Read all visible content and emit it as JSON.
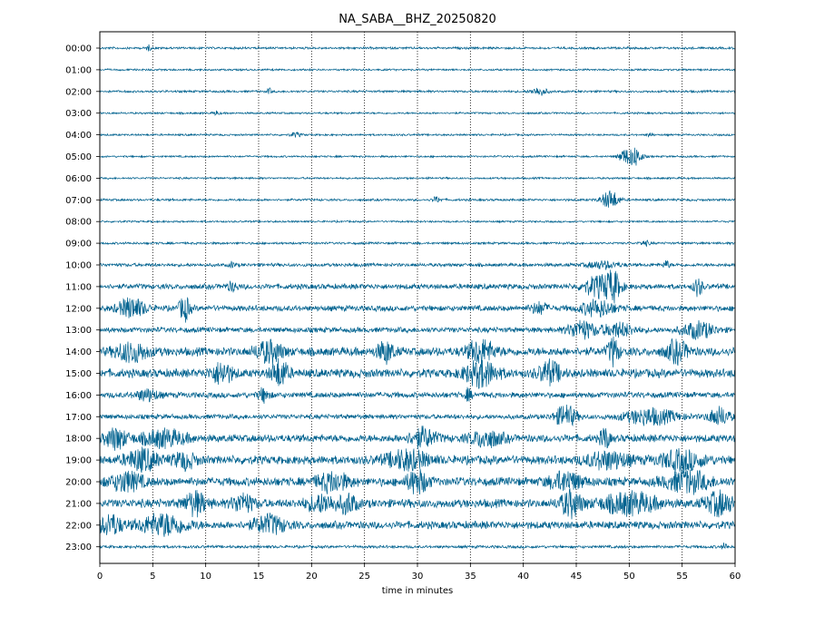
{
  "chart_data": {
    "type": "line",
    "title": "NA_SABA__BHZ_20250820",
    "xlabel": "time in minutes",
    "ylabel": "",
    "xlim": [
      0,
      60
    ],
    "x_ticks": [
      0,
      5,
      10,
      15,
      20,
      25,
      30,
      35,
      40,
      45,
      50,
      55,
      60
    ],
    "grid": "vertical dotted",
    "trace_color": "#00628f",
    "grid_color": "#000000",
    "rows": [
      {
        "label": "00:00",
        "noise": 0.12,
        "events": [
          {
            "t": 4.6,
            "amp": 0.25,
            "dur": 0.4
          }
        ]
      },
      {
        "label": "01:00",
        "noise": 0.1,
        "events": []
      },
      {
        "label": "02:00",
        "noise": 0.12,
        "events": [
          {
            "t": 16.0,
            "amp": 0.25,
            "dur": 0.4
          },
          {
            "t": 41.5,
            "amp": 0.35,
            "dur": 1.5
          }
        ]
      },
      {
        "label": "03:00",
        "noise": 0.1,
        "events": [
          {
            "t": 11.0,
            "amp": 0.2,
            "dur": 0.5
          }
        ]
      },
      {
        "label": "04:00",
        "noise": 0.1,
        "events": [
          {
            "t": 18.5,
            "amp": 0.2,
            "dur": 1.0
          },
          {
            "t": 52.0,
            "amp": 0.2,
            "dur": 0.5
          }
        ]
      },
      {
        "label": "05:00",
        "noise": 0.1,
        "events": [
          {
            "t": 49.5,
            "amp": 0.55,
            "dur": 1.0
          },
          {
            "t": 50.5,
            "amp": 0.9,
            "dur": 1.3
          }
        ]
      },
      {
        "label": "06:00",
        "noise": 0.1,
        "events": []
      },
      {
        "label": "07:00",
        "noise": 0.12,
        "events": [
          {
            "t": 31.8,
            "amp": 0.25,
            "dur": 0.8
          },
          {
            "t": 48.2,
            "amp": 0.85,
            "dur": 1.6
          }
        ]
      },
      {
        "label": "08:00",
        "noise": 0.1,
        "events": []
      },
      {
        "label": "09:00",
        "noise": 0.12,
        "events": [
          {
            "t": 51.5,
            "amp": 0.2,
            "dur": 1.0
          }
        ]
      },
      {
        "label": "10:00",
        "noise": 0.18,
        "events": [
          {
            "t": 12.5,
            "amp": 0.25,
            "dur": 0.5
          },
          {
            "t": 47.5,
            "amp": 0.3,
            "dur": 3.0
          },
          {
            "t": 53.5,
            "amp": 0.35,
            "dur": 0.6
          }
        ]
      },
      {
        "label": "11:00",
        "noise": 0.28,
        "events": [
          {
            "t": 12.5,
            "amp": 0.35,
            "dur": 1.0
          },
          {
            "t": 47.0,
            "amp": 0.9,
            "dur": 2.5
          },
          {
            "t": 48.5,
            "amp": 1.2,
            "dur": 1.5
          },
          {
            "t": 56.5,
            "amp": 0.8,
            "dur": 0.8
          }
        ]
      },
      {
        "label": "12:00",
        "noise": 0.3,
        "events": [
          {
            "t": 3.0,
            "amp": 0.9,
            "dur": 2.5
          },
          {
            "t": 8.0,
            "amp": 1.1,
            "dur": 1.0
          },
          {
            "t": 41.5,
            "amp": 0.5,
            "dur": 1.5
          },
          {
            "t": 47.0,
            "amp": 0.7,
            "dur": 3.0
          }
        ]
      },
      {
        "label": "13:00",
        "noise": 0.28,
        "events": [
          {
            "t": 45.5,
            "amp": 0.8,
            "dur": 2.5
          },
          {
            "t": 49.0,
            "amp": 0.6,
            "dur": 3.0
          },
          {
            "t": 56.5,
            "amp": 0.7,
            "dur": 3.0
          }
        ]
      },
      {
        "label": "14:00",
        "noise": 0.45,
        "events": [
          {
            "t": 3.0,
            "amp": 0.8,
            "dur": 3.0
          },
          {
            "t": 16.0,
            "amp": 0.9,
            "dur": 2.5
          },
          {
            "t": 27.0,
            "amp": 0.9,
            "dur": 1.5
          },
          {
            "t": 36.0,
            "amp": 1.0,
            "dur": 2.5
          },
          {
            "t": 48.5,
            "amp": 1.2,
            "dur": 1.0
          },
          {
            "t": 54.5,
            "amp": 0.9,
            "dur": 2.0
          }
        ]
      },
      {
        "label": "15:00",
        "noise": 0.45,
        "events": [
          {
            "t": 11.5,
            "amp": 0.9,
            "dur": 2.0
          },
          {
            "t": 17.0,
            "amp": 1.2,
            "dur": 1.5
          },
          {
            "t": 36.0,
            "amp": 1.1,
            "dur": 3.0
          },
          {
            "t": 42.5,
            "amp": 1.0,
            "dur": 2.0
          }
        ]
      },
      {
        "label": "16:00",
        "noise": 0.3,
        "events": [
          {
            "t": 4.5,
            "amp": 0.5,
            "dur": 2.0
          },
          {
            "t": 15.5,
            "amp": 0.6,
            "dur": 1.0
          },
          {
            "t": 34.8,
            "amp": 0.5,
            "dur": 0.6
          }
        ]
      },
      {
        "label": "17:00",
        "noise": 0.25,
        "events": [
          {
            "t": 44.0,
            "amp": 1.0,
            "dur": 2.0
          },
          {
            "t": 52.0,
            "amp": 0.7,
            "dur": 5.0
          },
          {
            "t": 58.5,
            "amp": 0.8,
            "dur": 2.0
          }
        ]
      },
      {
        "label": "18:00",
        "noise": 0.4,
        "events": [
          {
            "t": 1.5,
            "amp": 0.9,
            "dur": 2.0
          },
          {
            "t": 6.0,
            "amp": 0.7,
            "dur": 4.0
          },
          {
            "t": 30.5,
            "amp": 0.8,
            "dur": 2.5
          },
          {
            "t": 36.5,
            "amp": 0.7,
            "dur": 3.0
          },
          {
            "t": 47.7,
            "amp": 1.0,
            "dur": 0.8
          }
        ]
      },
      {
        "label": "19:00",
        "noise": 0.45,
        "events": [
          {
            "t": 4.0,
            "amp": 0.9,
            "dur": 3.0
          },
          {
            "t": 8.0,
            "amp": 0.7,
            "dur": 2.0
          },
          {
            "t": 29.0,
            "amp": 0.8,
            "dur": 4.0
          },
          {
            "t": 48.0,
            "amp": 0.7,
            "dur": 4.0
          },
          {
            "t": 55.0,
            "amp": 0.8,
            "dur": 4.0
          }
        ]
      },
      {
        "label": "20:00",
        "noise": 0.45,
        "events": [
          {
            "t": 2.5,
            "amp": 0.8,
            "dur": 3.0
          },
          {
            "t": 22.0,
            "amp": 0.8,
            "dur": 3.0
          },
          {
            "t": 30.0,
            "amp": 1.0,
            "dur": 2.0
          },
          {
            "t": 44.0,
            "amp": 0.8,
            "dur": 3.0
          },
          {
            "t": 55.5,
            "amp": 0.9,
            "dur": 4.0
          }
        ]
      },
      {
        "label": "21:00",
        "noise": 0.45,
        "events": [
          {
            "t": 9.0,
            "amp": 1.0,
            "dur": 2.0
          },
          {
            "t": 13.5,
            "amp": 0.8,
            "dur": 2.0
          },
          {
            "t": 21.0,
            "amp": 0.7,
            "dur": 3.0
          },
          {
            "t": 23.5,
            "amp": 0.8,
            "dur": 1.5
          },
          {
            "t": 44.5,
            "amp": 1.1,
            "dur": 2.0
          },
          {
            "t": 50.0,
            "amp": 0.9,
            "dur": 5.0
          },
          {
            "t": 58.5,
            "amp": 1.0,
            "dur": 2.5
          }
        ]
      },
      {
        "label": "22:00",
        "noise": 0.4,
        "events": [
          {
            "t": 1.0,
            "amp": 0.9,
            "dur": 2.0
          },
          {
            "t": 6.0,
            "amp": 0.9,
            "dur": 4.5
          },
          {
            "t": 16.0,
            "amp": 0.8,
            "dur": 3.0
          }
        ]
      },
      {
        "label": "23:00",
        "noise": 0.15,
        "events": [
          {
            "t": 59.0,
            "amp": 0.3,
            "dur": 0.5
          }
        ]
      }
    ]
  }
}
